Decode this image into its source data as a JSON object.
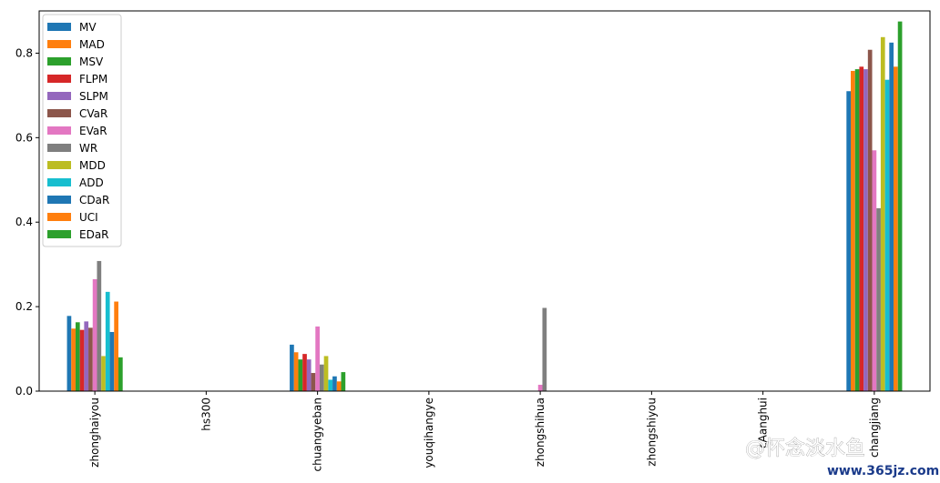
{
  "chart_data": {
    "type": "bar",
    "categories": [
      "zhonghaiyou",
      "hs300",
      "chuangyeban",
      "youqihangye",
      "zhongshihua",
      "zhongshiyou",
      "cAanghui",
      "changjiang"
    ],
    "ylim": [
      0,
      0.9
    ],
    "yticks": [
      "0.0",
      "0.2",
      "0.4",
      "0.6",
      "0.8"
    ],
    "ytick_values": [
      0.0,
      0.2,
      0.4,
      0.6,
      0.8
    ],
    "legend_position": "upper-left",
    "grid": false,
    "series": [
      {
        "name": "MV",
        "color": "#1f77b4",
        "values": [
          0.178,
          0,
          0.11,
          0,
          0,
          0,
          0,
          0.71
        ]
      },
      {
        "name": "MAD",
        "color": "#ff7f0e",
        "values": [
          0.148,
          0,
          0.092,
          0,
          0,
          0,
          0,
          0.758
        ]
      },
      {
        "name": "MSV",
        "color": "#2ca02c",
        "values": [
          0.163,
          0,
          0.075,
          0,
          0,
          0,
          0,
          0.762
        ]
      },
      {
        "name": "FLPM",
        "color": "#d62728",
        "values": [
          0.145,
          0,
          0.088,
          0,
          0,
          0,
          0,
          0.768
        ]
      },
      {
        "name": "SLPM",
        "color": "#9467bd",
        "values": [
          0.165,
          0,
          0.075,
          0,
          0,
          0,
          0,
          0.762
        ]
      },
      {
        "name": "CVaR",
        "color": "#8c564b",
        "values": [
          0.15,
          0,
          0.043,
          0,
          0,
          0,
          0,
          0.808
        ]
      },
      {
        "name": "EVaR",
        "color": "#e377c2",
        "values": [
          0.265,
          0,
          0.153,
          0,
          0.015,
          0,
          0,
          0.57
        ]
      },
      {
        "name": "WR",
        "color": "#7f7f7f",
        "values": [
          0.308,
          0,
          0.063,
          0,
          0.197,
          0,
          0,
          0.433
        ]
      },
      {
        "name": "MDD",
        "color": "#bcbd22",
        "values": [
          0.083,
          0,
          0.083,
          0,
          0,
          0,
          0,
          0.838
        ]
      },
      {
        "name": "ADD",
        "color": "#17becf",
        "values": [
          0.235,
          0,
          0.027,
          0,
          0,
          0,
          0,
          0.737
        ]
      },
      {
        "name": "CDaR",
        "color": "#1f77b4",
        "values": [
          0.14,
          0,
          0.035,
          0,
          0,
          0,
          0,
          0.825
        ]
      },
      {
        "name": "UCI",
        "color": "#ff7f0e",
        "values": [
          0.212,
          0,
          0.023,
          0,
          0,
          0,
          0,
          0.768
        ]
      },
      {
        "name": "EDaR",
        "color": "#2ca02c",
        "values": [
          0.08,
          0,
          0.045,
          0,
          0,
          0,
          0,
          0.875
        ]
      }
    ]
  },
  "watermark": {
    "chinese_text": "怀念淡水鱼",
    "url_text": "www.365jz.com"
  }
}
